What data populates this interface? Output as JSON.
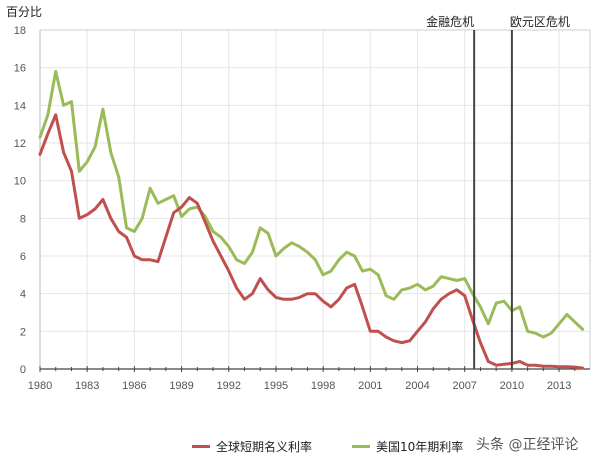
{
  "header": {
    "y_unit_label": "百分比"
  },
  "annotations": [
    {
      "label": "金融危机",
      "year": 2007.6
    },
    {
      "label": "欧元区危机",
      "year": 2010.0
    }
  ],
  "legend": [
    {
      "label": "全球短期名义利率",
      "color": "#c0504d"
    },
    {
      "label": "美国10年期利率",
      "color": "#9bbb59"
    }
  ],
  "watermark": "头条 @正经评论",
  "chart_data": {
    "type": "line",
    "title": "",
    "xlabel": "",
    "ylabel": "百分比",
    "ylim": [
      0,
      18
    ],
    "xlim": [
      1980,
      2014.7
    ],
    "yticks": [
      0,
      2,
      4,
      6,
      8,
      10,
      12,
      14,
      16,
      18
    ],
    "xticks": [
      "1980",
      "1983",
      "1986",
      "1989",
      "1992",
      "1995",
      "1998",
      "2001",
      "2004",
      "2007",
      "2010",
      "2013"
    ],
    "grid": true,
    "legend_position": "bottom",
    "vlines": [
      {
        "x": 2007.6,
        "label": "金融危机"
      },
      {
        "x": 2010.0,
        "label": "欧元区危机"
      }
    ],
    "x": [
      1980.0,
      1980.5,
      1981.0,
      1981.5,
      1982.0,
      1982.5,
      1983.0,
      1983.5,
      1984.0,
      1984.5,
      1985.0,
      1985.5,
      1986.0,
      1986.5,
      1987.0,
      1987.5,
      1988.0,
      1988.5,
      1989.0,
      1989.5,
      1990.0,
      1990.5,
      1991.0,
      1991.5,
      1992.0,
      1992.5,
      1993.0,
      1993.5,
      1994.0,
      1994.5,
      1995.0,
      1995.5,
      1996.0,
      1996.5,
      1997.0,
      1997.5,
      1998.0,
      1998.5,
      1999.0,
      1999.5,
      2000.0,
      2000.5,
      2001.0,
      2001.5,
      2002.0,
      2002.5,
      2003.0,
      2003.5,
      2004.0,
      2004.5,
      2005.0,
      2005.5,
      2006.0,
      2006.5,
      2007.0,
      2007.5,
      2008.0,
      2008.5,
      2009.0,
      2009.5,
      2010.0,
      2010.5,
      2011.0,
      2011.5,
      2012.0,
      2012.5,
      2013.0,
      2013.5,
      2014.0,
      2014.5
    ],
    "series": [
      {
        "name": "全球短期名义利率",
        "color": "#c0504d",
        "values": [
          11.4,
          12.5,
          13.5,
          11.5,
          10.5,
          8.0,
          8.2,
          8.5,
          9.0,
          8.0,
          7.3,
          7.0,
          6.0,
          5.8,
          5.8,
          5.7,
          7.0,
          8.3,
          8.6,
          9.1,
          8.8,
          7.8,
          6.8,
          6.0,
          5.2,
          4.3,
          3.7,
          4.0,
          4.8,
          4.2,
          3.8,
          3.7,
          3.7,
          3.8,
          4.0,
          4.0,
          3.6,
          3.3,
          3.7,
          4.3,
          4.5,
          3.3,
          2.0,
          2.0,
          1.7,
          1.5,
          1.4,
          1.5,
          2.0,
          2.5,
          3.2,
          3.7,
          4.0,
          4.2,
          3.9,
          2.6,
          1.4,
          0.4,
          0.2,
          0.25,
          0.3,
          0.4,
          0.2,
          0.2,
          0.15,
          0.15,
          0.12,
          0.12,
          0.1,
          0.05
        ]
      },
      {
        "name": "美国10年期利率",
        "color": "#9bbb59",
        "values": [
          12.3,
          13.5,
          15.8,
          14.0,
          14.2,
          10.5,
          11.0,
          11.8,
          13.8,
          11.5,
          10.2,
          7.5,
          7.3,
          8.0,
          9.6,
          8.8,
          9.0,
          9.2,
          8.1,
          8.5,
          8.6,
          8.1,
          7.3,
          7.0,
          6.5,
          5.8,
          5.6,
          6.2,
          7.5,
          7.2,
          6.0,
          6.4,
          6.7,
          6.5,
          6.2,
          5.8,
          5.0,
          5.2,
          5.8,
          6.2,
          6.0,
          5.2,
          5.3,
          5.0,
          3.9,
          3.7,
          4.2,
          4.3,
          4.5,
          4.2,
          4.4,
          4.9,
          4.8,
          4.7,
          4.8,
          4.0,
          3.3,
          2.4,
          3.5,
          3.6,
          3.1,
          3.3,
          2.0,
          1.9,
          1.7,
          1.9,
          2.4,
          2.9,
          2.5,
          2.1
        ]
      }
    ]
  }
}
